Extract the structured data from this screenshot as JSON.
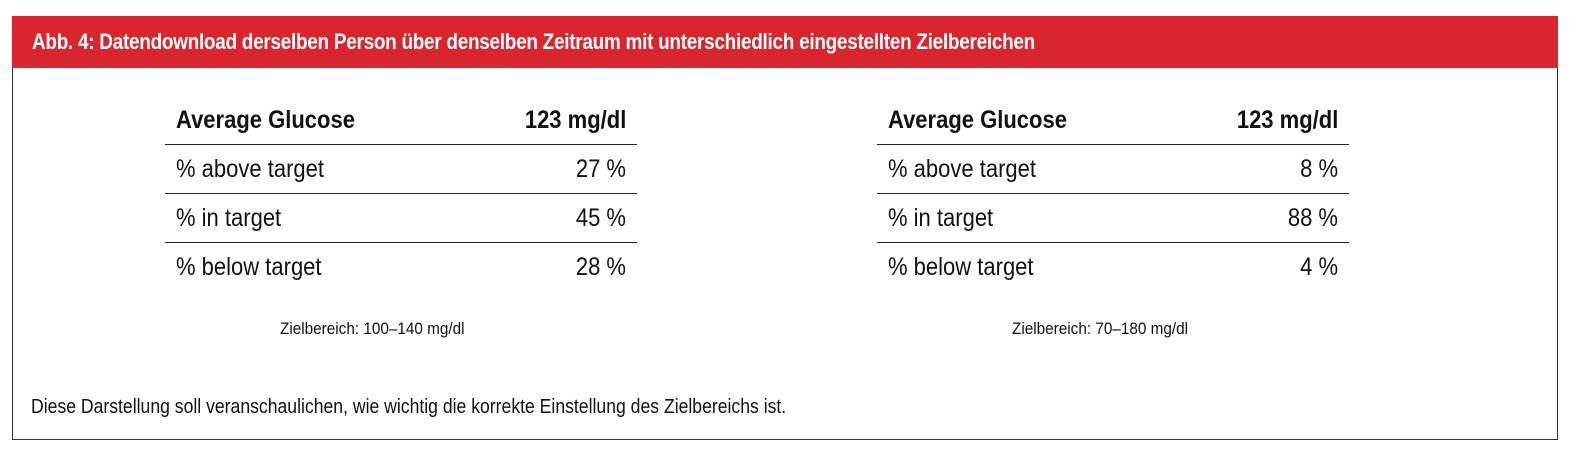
{
  "figure": {
    "title": "Abb. 4: Datendownload derselben Person über denselben Zeitraum mit unterschiedlich eingestellten Zielbereichen",
    "header_color": "#d9262e",
    "footnote": "Diese Darstellung soll veranschaulichen, wie wichtig die korrekte Einstellung des Zielbereichs ist."
  },
  "tables": [
    {
      "header": {
        "label": "Average Glucose",
        "value": "123 mg/dl"
      },
      "rows": [
        {
          "label": "% above target",
          "value": "27 %"
        },
        {
          "label": "% in target",
          "value": "45 %"
        },
        {
          "label": "% below target",
          "value": "28 %"
        }
      ],
      "caption": "Zielbereich: 100–140 mg/dl"
    },
    {
      "header": {
        "label": "Average Glucose",
        "value": "123 mg/dl"
      },
      "rows": [
        {
          "label": "% above target",
          "value": "8 %"
        },
        {
          "label": "% in target",
          "value": "88 %"
        },
        {
          "label": "% below target",
          "value": "4 %"
        }
      ],
      "caption": "Zielbereich: 70–180 mg/dl"
    }
  ]
}
